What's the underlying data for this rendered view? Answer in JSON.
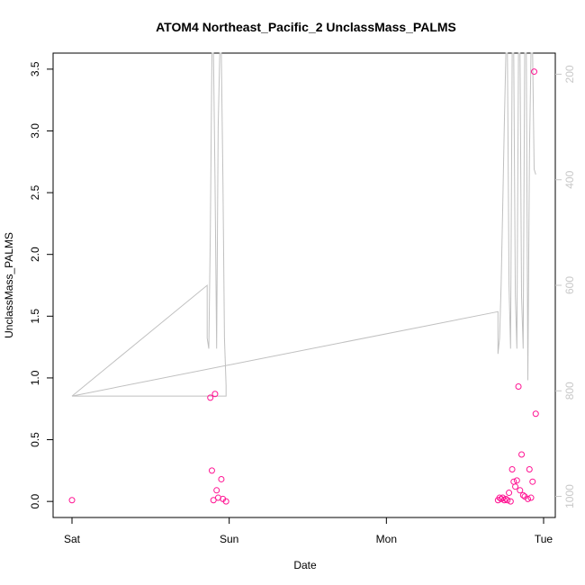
{
  "chart_data": {
    "type": "scatter",
    "title": "ATOM4 Northeast_Pacific_2 UnclassMass_PALMS",
    "xlabel": "Date",
    "ylabel": "UnclassMass_PALMS",
    "x_ticks": [
      "Sat",
      "Sun",
      "Mon",
      "Tue"
    ],
    "x_range_days": [
      0,
      3.05
    ],
    "ylim": [
      -0.13,
      3.63
    ],
    "y_ticks": [
      "0.0",
      "0.5",
      "1.0",
      "1.5",
      "2.0",
      "2.5",
      "3.0",
      "3.5"
    ],
    "y_tick_values": [
      0,
      0.5,
      1.0,
      1.5,
      2.0,
      2.5,
      3.0,
      3.5
    ],
    "right_axis": {
      "range": [
        1040,
        160
      ],
      "ticks": [
        "200",
        "400",
        "600",
        "800",
        "1000"
      ],
      "tick_values": [
        200,
        400,
        600,
        800,
        1000
      ],
      "color": "#c8c8c8"
    },
    "colors": {
      "points": "#ff1493",
      "line": "#c0c0c0"
    },
    "series": [
      {
        "type": "scatter",
        "x": [
          0.0,
          0.88,
          0.89,
          0.9,
          0.91,
          0.92,
          0.93,
          0.95,
          0.96,
          0.98,
          2.71,
          2.72,
          2.73,
          2.74,
          2.75,
          2.76,
          2.77,
          2.78,
          2.79,
          2.8,
          2.81,
          2.82,
          2.83,
          2.84,
          2.85,
          2.86,
          2.87,
          2.88,
          2.9,
          2.91,
          2.92,
          2.93,
          2.94,
          2.95
        ],
        "y": [
          0.01,
          0.84,
          0.25,
          0.01,
          0.87,
          0.09,
          0.03,
          0.18,
          0.02,
          0.0,
          0.01,
          0.03,
          0.02,
          0.03,
          0.01,
          0.02,
          0.01,
          0.07,
          0.0,
          0.26,
          0.16,
          0.12,
          0.17,
          0.93,
          0.09,
          0.38,
          0.05,
          0.04,
          0.02,
          0.26,
          0.03,
          0.16,
          3.48,
          0.71
        ]
      },
      {
        "type": "line",
        "axis": "right",
        "x": [
          0.0,
          0.98,
          0.98,
          0.97,
          0.96,
          0.95,
          0.94,
          0.93,
          0.92,
          0.91,
          0.9,
          0.89,
          0.88,
          0.87,
          0.86,
          0.86,
          0.0,
          2.71,
          2.71,
          2.72,
          2.73,
          2.74,
          2.75,
          2.76,
          2.77,
          2.78,
          2.79,
          2.8,
          2.81,
          2.82,
          2.83,
          2.84,
          2.85,
          2.86,
          2.87,
          2.88,
          2.89,
          2.9,
          2.91,
          2.92,
          2.93,
          2.94,
          2.95
        ],
        "y": [
          810,
          810,
          790,
          700,
          400,
          160,
          160,
          300,
          720,
          400,
          160,
          160,
          500,
          720,
          700,
          600,
          810,
          650,
          730,
          700,
          600,
          450,
          300,
          160,
          160,
          600,
          720,
          160,
          160,
          620,
          720,
          160,
          160,
          620,
          720,
          160,
          160,
          780,
          350,
          160,
          160,
          380,
          390
        ]
      }
    ]
  }
}
